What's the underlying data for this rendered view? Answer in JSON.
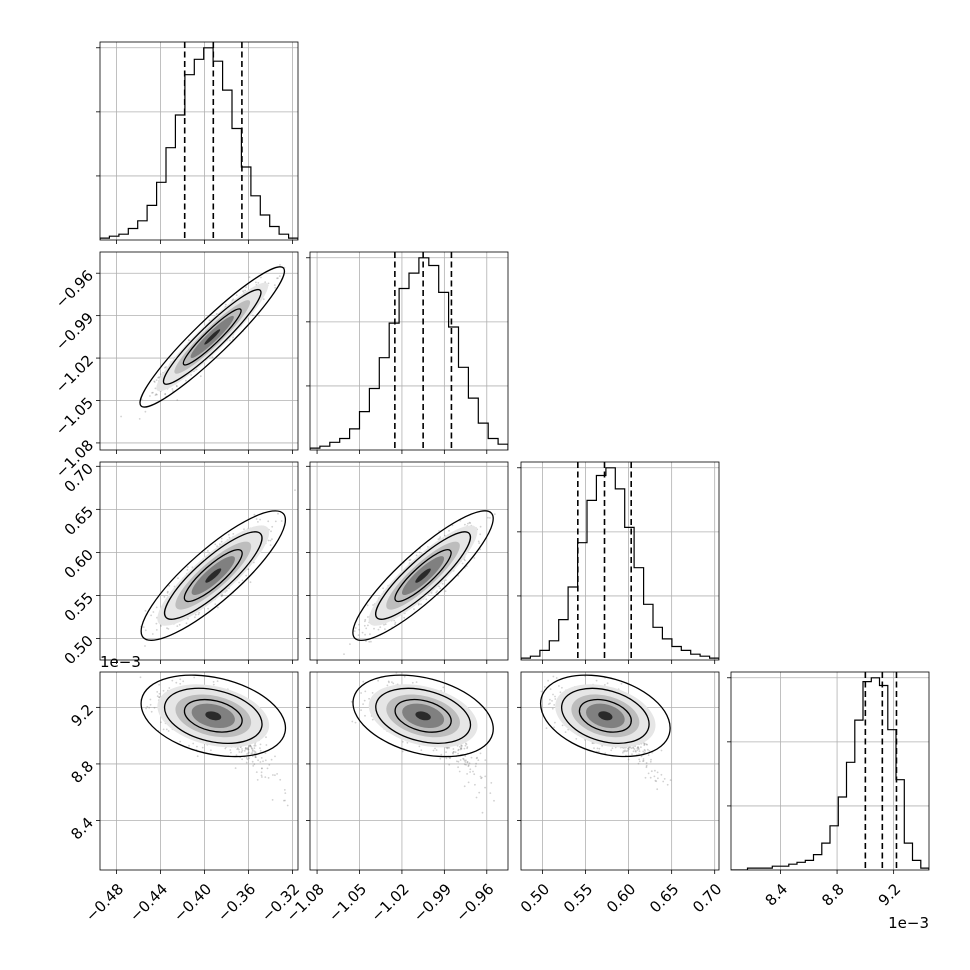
{
  "chart_data": {
    "type": "corner",
    "grid": true,
    "parameters": [
      {
        "range": [
          -0.495,
          -0.315
        ],
        "ticks": [
          -0.48,
          -0.44,
          -0.4,
          -0.36,
          -0.32
        ],
        "tick_labels": [
          "−0.48",
          "−0.44",
          "−0.40",
          "−0.36",
          "−0.32"
        ],
        "offset_label": "",
        "quantiles": [
          -0.418,
          -0.392,
          -0.366
        ],
        "hist_counts": [
          1,
          2,
          3,
          6,
          10,
          18,
          30,
          48,
          65,
          86,
          94,
          100,
          93,
          78,
          58,
          38,
          23,
          13,
          7,
          3,
          1
        ]
      },
      {
        "range": [
          -1.085,
          -0.945
        ],
        "ticks": [
          -1.08,
          -1.05,
          -1.02,
          -0.99,
          -0.96
        ],
        "tick_labels": [
          "−1.08",
          "−1.05",
          "−1.02",
          "−0.99",
          "−0.96"
        ],
        "offset_label": "",
        "quantiles": [
          -1.025,
          -1.005,
          -0.985
        ],
        "hist_counts": [
          1,
          2,
          4,
          6,
          11,
          20,
          32,
          48,
          66,
          84,
          92,
          100,
          96,
          82,
          64,
          43,
          27,
          14,
          6,
          3
        ]
      },
      {
        "range": [
          0.475,
          0.705
        ],
        "ticks": [
          0.5,
          0.55,
          0.6,
          0.65,
          0.7
        ],
        "tick_labels": [
          "0.50",
          "0.55",
          "0.60",
          "0.65",
          "0.70"
        ],
        "offset_label": "",
        "quantiles": [
          0.541,
          0.572,
          0.603
        ],
        "hist_counts": [
          1,
          2,
          5,
          10,
          21,
          38,
          61,
          83,
          96,
          100,
          89,
          69,
          48,
          29,
          17,
          11,
          7,
          5,
          3,
          2,
          1
        ]
      },
      {
        "range": [
          8.05,
          9.45
        ],
        "ticks": [
          8.4,
          8.8,
          9.2
        ],
        "tick_labels": [
          "8.4",
          "8.8",
          "9.2"
        ],
        "offset_label": "1e−3",
        "quantiles": [
          9.0,
          9.12,
          9.22
        ],
        "hist_counts": [
          0,
          0,
          1,
          1,
          1,
          2,
          2,
          3,
          4,
          5,
          8,
          14,
          23,
          38,
          56,
          78,
          98,
          100,
          96,
          73,
          47,
          14,
          5,
          1
        ]
      }
    ],
    "pairs": [
      {
        "x": 0,
        "y": 1,
        "center": [
          -0.393,
          -1.005
        ],
        "sigma": [
          0.0205,
          0.0155
        ],
        "rho": 0.94
      },
      {
        "x": 0,
        "y": 2,
        "center": [
          -0.392,
          0.573
        ],
        "sigma": [
          0.0205,
          0.0235
        ],
        "rho": 0.86
      },
      {
        "x": 1,
        "y": 2,
        "center": [
          -1.005,
          0.573
        ],
        "sigma": [
          0.0155,
          0.0235
        ],
        "rho": 0.88
      },
      {
        "x": 0,
        "y": 3,
        "center": [
          -0.392,
          9.14
        ],
        "sigma": [
          0.0205,
          0.09
        ],
        "rho": -0.3
      },
      {
        "x": 1,
        "y": 3,
        "center": [
          -1.005,
          9.14
        ],
        "sigma": [
          0.0155,
          0.09
        ],
        "rho": -0.32
      },
      {
        "x": 2,
        "y": 3,
        "center": [
          0.573,
          9.14
        ],
        "sigma": [
          0.0235,
          0.09
        ],
        "rho": -0.3
      }
    ]
  }
}
